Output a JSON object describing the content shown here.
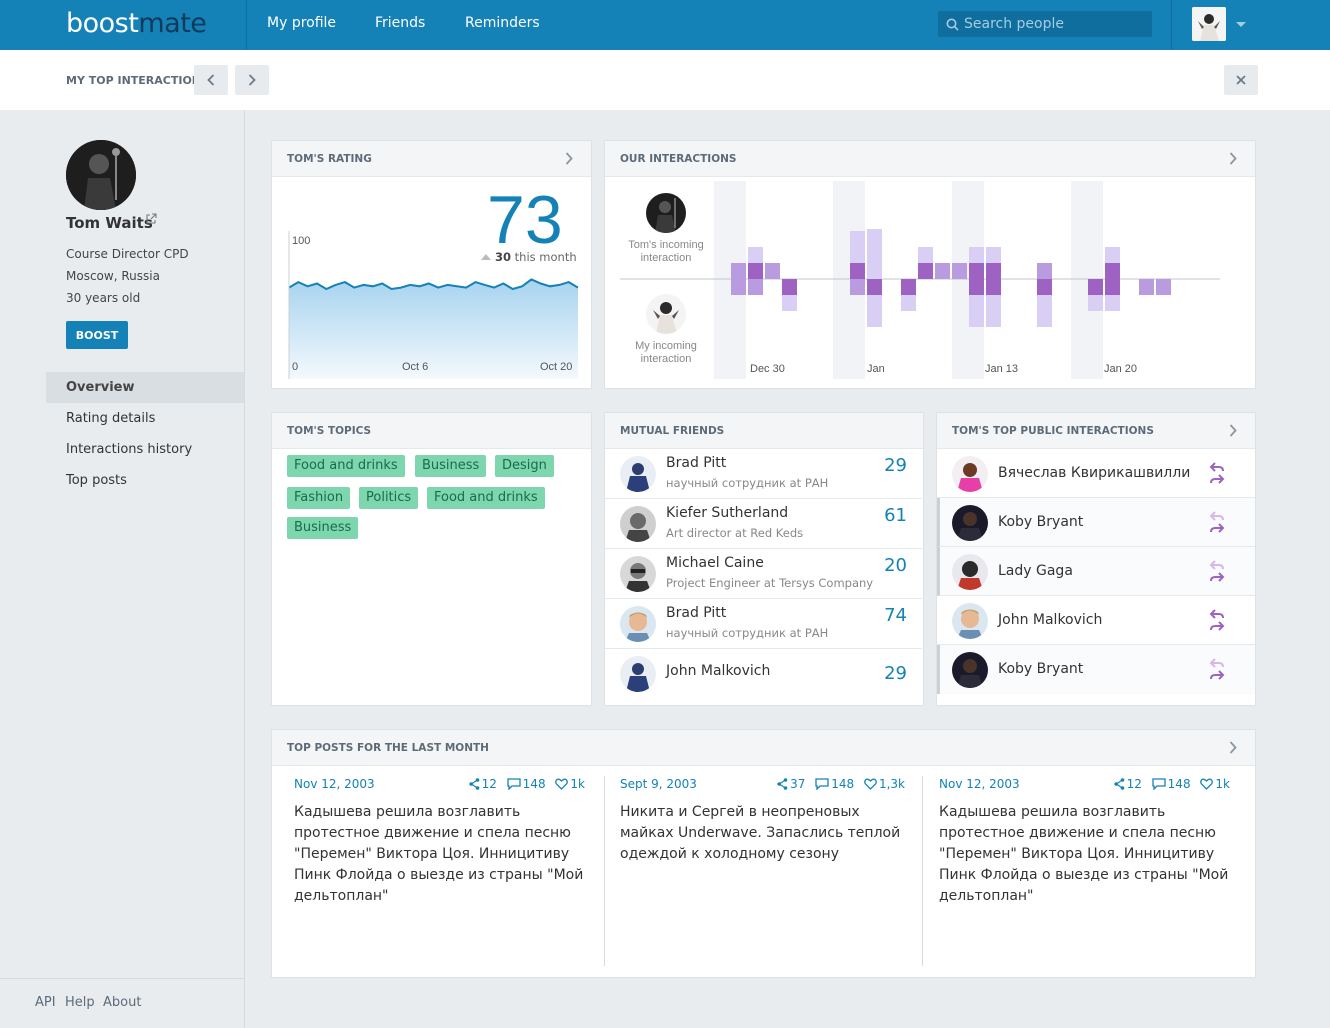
{
  "app": {
    "logo_a": "boost",
    "logo_b": "mate"
  },
  "nav": {
    "profile": "My profile",
    "friends": "Friends",
    "reminders": "Reminders"
  },
  "search": {
    "placeholder": "Search people"
  },
  "subbar": {
    "title": "MY TOP INTERACTIONS"
  },
  "profile": {
    "name": "Tom Waits",
    "role": "Course Director CPD",
    "location": "Moscow, Russia",
    "age": "30 years old",
    "boost_label": "BOOST"
  },
  "menu": [
    {
      "label": "Overview",
      "active": true
    },
    {
      "label": "Rating details"
    },
    {
      "label": "Interactions history"
    },
    {
      "label": "Top posts"
    }
  ],
  "footer": {
    "api": "API",
    "help": "Help",
    "about": "About"
  },
  "rating": {
    "title": "TOM'S RATING",
    "value": "73",
    "delta": "30",
    "delta_suffix": "this month",
    "y_max": "100",
    "y_min": "0",
    "x_labels": [
      "Oct 6",
      "Oct 20"
    ],
    "series": [
      72,
      76,
      73,
      75,
      71,
      74,
      76,
      72,
      74,
      73,
      75,
      71,
      72,
      74,
      73,
      75,
      72,
      74,
      73,
      72,
      76,
      74,
      72,
      75,
      71,
      73,
      78,
      75,
      73,
      74,
      76,
      72
    ]
  },
  "interactions": {
    "title": "OUR INTERACTIONS",
    "incoming_label": "Tom's incoming interaction",
    "my_label": "My incoming interaction",
    "x_labels": [
      "Dec 30",
      "Jan",
      "Jan 13",
      "Jan 20"
    ],
    "incoming": [
      0,
      1,
      2,
      1,
      0,
      0,
      0,
      0,
      3,
      4,
      0,
      0,
      2,
      1,
      1,
      2,
      2,
      0,
      0,
      1,
      0,
      0,
      0,
      2,
      0,
      0,
      0
    ],
    "outgoing": [
      0,
      1,
      1,
      0,
      2,
      0,
      0,
      0,
      1,
      3,
      0,
      2,
      0,
      0,
      0,
      3,
      3,
      0,
      0,
      3,
      0,
      0,
      2,
      2,
      0,
      1,
      1
    ],
    "colors": {
      "light": "#d9cef3",
      "mid": "#b99ce0",
      "dark": "#9e62c2",
      "shade": "#f1f3f6"
    }
  },
  "topics": {
    "title": "TOM'S TOPICS",
    "tags": [
      "Food and drinks",
      "Business",
      "Design",
      "Fashion",
      "Politics",
      "Food and drinks",
      "Business"
    ]
  },
  "mutual": {
    "title": "MUTUAL FRIENDS",
    "rows": [
      {
        "name": "Brad Pitt",
        "sub": "научный сотрудник at РАН",
        "count": "29"
      },
      {
        "name": "Kiefer Sutherland",
        "sub": "Art director at Red Keds",
        "count": "61"
      },
      {
        "name": "Michael Caine",
        "sub": "Project Engineer at Tersys Company",
        "count": "20"
      },
      {
        "name": "Brad Pitt",
        "sub": "научный сотрудник at РАН",
        "count": "74"
      },
      {
        "name": "John Malkovich",
        "sub": "",
        "count": "29"
      }
    ]
  },
  "public": {
    "title": "TOM'S TOP PUBLIC INTERACTIONS",
    "rows": [
      {
        "name": "Вячеслав Квирикашвилли"
      },
      {
        "name": "Koby Bryant"
      },
      {
        "name": "Lady Gaga"
      },
      {
        "name": "John Malkovich"
      },
      {
        "name": "Koby Bryant"
      }
    ]
  },
  "posts": {
    "title": "TOP POSTS FOR THE LAST MONTH",
    "items": [
      {
        "date": "Nov 12, 2003",
        "shares": "12",
        "comments": "148",
        "likes": "1k",
        "text": "Кадышева решила возглавить протестное движение и спела песню \"Перемен\" Виктора Цоя. Инницитиву Пинк Флойда о выезде из страны \"Мой дельтоплан\""
      },
      {
        "date": "Sept 9, 2003",
        "shares": "37",
        "comments": "148",
        "likes": "1,3k",
        "text": "Никита и Сергей в неопреновых майках Underwave. Запаслись теплой одеждой к холодному сезону"
      },
      {
        "date": "Nov 12, 2003",
        "shares": "12",
        "comments": "148",
        "likes": "1k",
        "text": "Кадышева решила возглавить протестное движение и спела песню \"Перемен\" Виктора Цоя. Инницитиву Пинк Флойда о выезде из страны \"Мой дельтоплан\""
      }
    ]
  }
}
